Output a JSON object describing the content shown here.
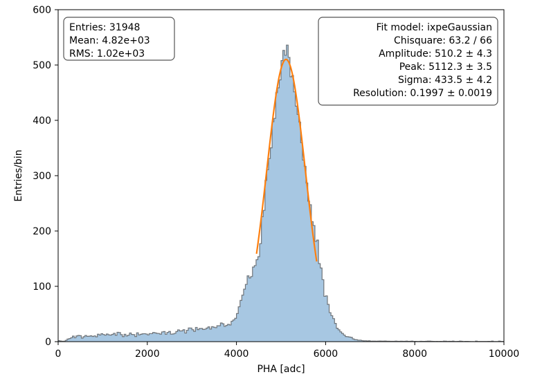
{
  "chart_data": {
    "type": "histogram",
    "xlabel": "PHA [adc]",
    "ylabel": "Entries/bin",
    "xlim": [
      0,
      10000
    ],
    "ylim": [
      0,
      600
    ],
    "x_ticks": [
      "0",
      "2000",
      "4000",
      "6000",
      "8000",
      "10000"
    ],
    "y_ticks": [
      "0",
      "100",
      "200",
      "300",
      "400",
      "500",
      "600"
    ],
    "grid": false,
    "bin_width": 40,
    "colors": {
      "histogram_fill": "#a7c7e2",
      "histogram_edge": "#6f7479",
      "fit_line": "#ff7f0e"
    },
    "histogram": {
      "bin_start": 0,
      "bin_end": 10000,
      "envelope": [
        {
          "x": 0,
          "y": 2
        },
        {
          "x": 120,
          "y": 0
        },
        {
          "x": 300,
          "y": 8
        },
        {
          "x": 1000,
          "y": 13
        },
        {
          "x": 2000,
          "y": 13
        },
        {
          "x": 3000,
          "y": 21
        },
        {
          "x": 3500,
          "y": 27
        },
        {
          "x": 3900,
          "y": 33
        },
        {
          "x": 4000,
          "y": 48
        },
        {
          "x": 4200,
          "y": 100
        },
        {
          "x": 4500,
          "y": 155
        },
        {
          "x": 4800,
          "y": 380
        },
        {
          "x": 5000,
          "y": 500
        },
        {
          "x": 5100,
          "y": 515
        },
        {
          "x": 5200,
          "y": 505
        },
        {
          "x": 5400,
          "y": 400
        },
        {
          "x": 5700,
          "y": 220
        },
        {
          "x": 5800,
          "y": 180
        },
        {
          "x": 6000,
          "y": 80
        },
        {
          "x": 6200,
          "y": 35
        },
        {
          "x": 6400,
          "y": 12
        },
        {
          "x": 6600,
          "y": 5
        },
        {
          "x": 6800,
          "y": 2
        },
        {
          "x": 7000,
          "y": 1
        },
        {
          "x": 8000,
          "y": 0.6
        },
        {
          "x": 10000,
          "y": 0.2
        }
      ]
    },
    "fit": {
      "model": "ixpeGaussian",
      "amplitude": 510.2,
      "peak": 5112.3,
      "sigma": 433.5,
      "x_range": [
        4450,
        5800
      ]
    },
    "stats_box": {
      "lines": [
        "Entries: 31948",
        "Mean: 4.82e+03",
        "RMS: 1.02e+03"
      ],
      "placement": "top-left"
    },
    "fit_box": {
      "lines": [
        "Fit model: ixpeGaussian",
        "Chisquare: 63.2 / 66",
        "Amplitude: 510.2 ± 4.3",
        "Peak: 5112.3 ± 3.5",
        "Sigma: 433.5 ± 4.2",
        "Resolution: 0.1997 ± 0.0019"
      ],
      "placement": "top-right"
    }
  }
}
